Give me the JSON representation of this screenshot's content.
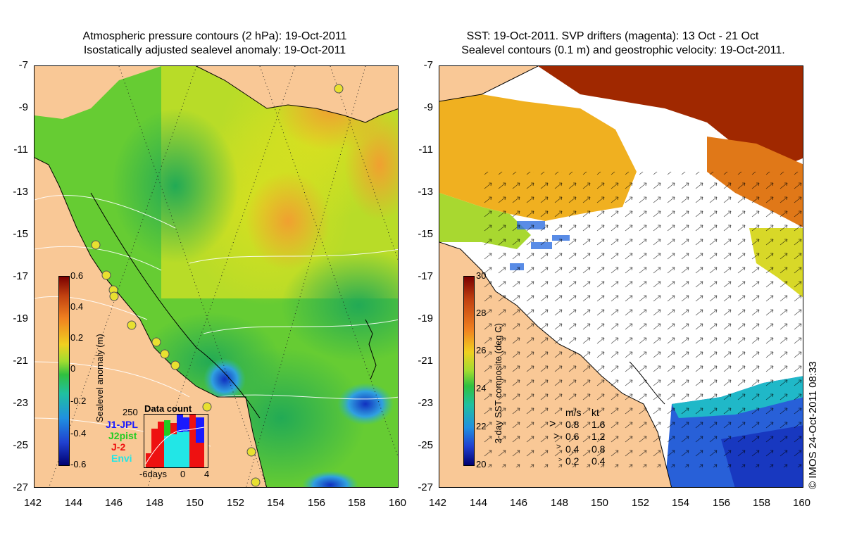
{
  "left_panel": {
    "title_line1": "Atmospheric pressure contours (2 hPa): 19-Oct-2011",
    "title_line2": "Isostatically adjusted sealevel anomaly: 19-Oct-2011",
    "colorbar_label": "Sealevel anomaly (m)",
    "colorbar_ticks": [
      "0.6",
      "0.4",
      "0.2",
      "0",
      "-0.2",
      "-0.4",
      "-0.6"
    ],
    "colorbar_range": [
      -0.6,
      0.6
    ],
    "inset": {
      "title": "Data count",
      "ymax_label": "250",
      "x_labels": [
        "-6days",
        "0",
        "4"
      ],
      "legend": [
        {
          "name": "J1-JPL",
          "color": "#1a1aff"
        },
        {
          "name": "J2pist",
          "color": "#22cc22"
        },
        {
          "name": "J-2",
          "color": "#ee1111"
        },
        {
          "name": "Envi",
          "color": "#22e6e6"
        }
      ]
    }
  },
  "right_panel": {
    "title_line1": "SST: 19-Oct-2011. SVP drifters (magenta): 13 Oct - 21 Oct",
    "title_line2": "Sealevel contours (0.1 m) and geostrophic velocity: 19-Oct-2011.",
    "colorbar_label": "3-day SST composite (deg C)",
    "colorbar_ticks": [
      "30",
      "28",
      "26",
      "24",
      "22",
      "20"
    ],
    "colorbar_range": [
      20,
      30
    ],
    "speed_legend": {
      "header": [
        "m/s",
        "kt"
      ],
      "rows": [
        [
          "0.8",
          "1.6"
        ],
        [
          "0.6",
          "1.2"
        ],
        [
          "0.4",
          "0.8"
        ],
        [
          "0.2",
          "0.4"
        ]
      ]
    }
  },
  "axes": {
    "y_ticks": [
      "-7",
      "-9",
      "-11",
      "-13",
      "-15",
      "-17",
      "-19",
      "-21",
      "-23",
      "-25",
      "-27"
    ],
    "x_ticks": [
      "142",
      "144",
      "146",
      "148",
      "150",
      "152",
      "154",
      "156",
      "158",
      "160"
    ]
  },
  "copyright": "© IMOS 24-Oct-2011 08:33",
  "colors": {
    "land": "#f9c896",
    "ocean_green": "#55cc33",
    "warm": "#f0a030",
    "cold": "#1a40d0"
  }
}
